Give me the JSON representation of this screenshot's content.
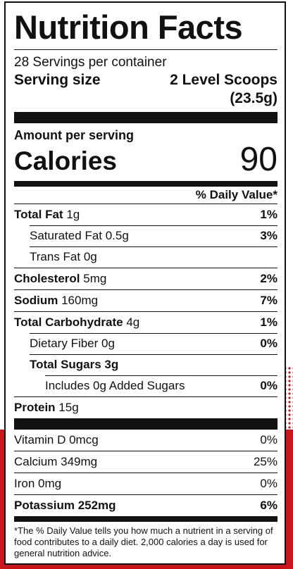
{
  "title": "Nutrition Facts",
  "servings_per_container": "28 Servings per container",
  "serving_size": {
    "label": "Serving size",
    "amount_line1": "2 Level Scoops",
    "amount_line2": "(23.5g)"
  },
  "amount_per_serving": "Amount per serving",
  "calories": {
    "label": "Calories",
    "value": "90"
  },
  "daily_value_header": "% Daily Value*",
  "nutrients": [
    {
      "name": "Total Fat",
      "amount": "1g",
      "dv": "1%"
    },
    {
      "name": "Saturated Fat 0.5g",
      "amount": "",
      "dv": "3%"
    },
    {
      "name": "Trans Fat 0g",
      "amount": "",
      "dv": ""
    },
    {
      "name": "Cholesterol",
      "amount": "5mg",
      "dv": "2%"
    },
    {
      "name": "Sodium",
      "amount": "160mg",
      "dv": "7%"
    },
    {
      "name": "Total Carbohydrate",
      "amount": "4g",
      "dv": "1%"
    },
    {
      "name": "Dietary Fiber 0g",
      "amount": "",
      "dv": "0%"
    },
    {
      "name": "Total Sugars 3g",
      "amount": "",
      "dv": ""
    },
    {
      "name": "Includes 0g Added Sugars",
      "amount": "",
      "dv": "0%"
    },
    {
      "name": "Protein",
      "amount": "15g",
      "dv": ""
    }
  ],
  "vitamins": [
    {
      "name": "Vitamin D 0mcg",
      "dv": "0%"
    },
    {
      "name": "Calcium 349mg",
      "dv": "25%"
    },
    {
      "name": "Iron 0mg",
      "dv": "0%"
    },
    {
      "name": "Potassium 252mg",
      "dv": "6%"
    }
  ],
  "footnote": "*The % Daily Value tells you how much a nutrient in a serving of food contributes to a daily diet. 2,000 calories a day is used for general nutrition advice.",
  "colors": {
    "accent_red": "#c8161d",
    "ink": "#111111"
  }
}
